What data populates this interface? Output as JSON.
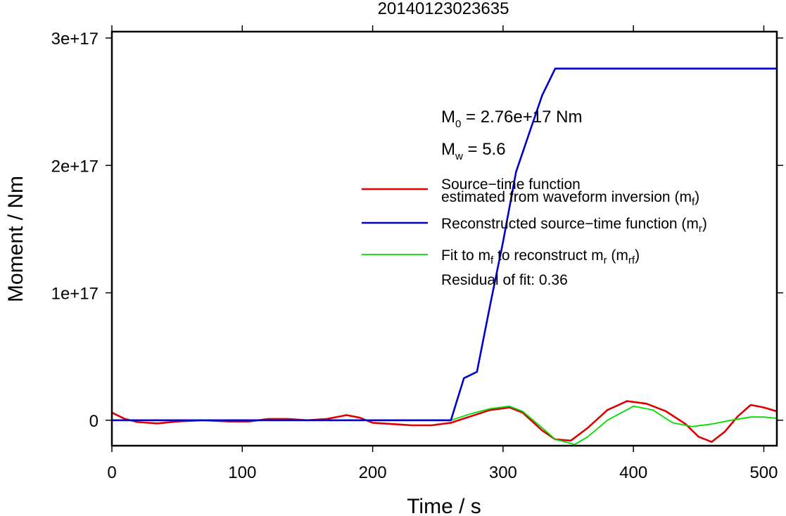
{
  "chart_data": {
    "type": "line",
    "title": "20140123023635",
    "xlabel": "Time / s",
    "ylabel": "Moment / Nm",
    "xlim": [
      0,
      510
    ],
    "ylim": [
      -2e+16,
      3.05e+17
    ],
    "x_ticks": [
      0,
      100,
      200,
      300,
      400,
      500
    ],
    "x_tick_labels": [
      "0",
      "100",
      "200",
      "300",
      "400",
      "500"
    ],
    "y_ticks": [
      0,
      1e+17,
      2e+17,
      3e+17
    ],
    "y_tick_labels": [
      "0",
      "1e+17",
      "2e+17",
      "3e+17"
    ],
    "grid": false,
    "legend_position": "right",
    "annotations": {
      "m0_symbol": "M",
      "m0_sub": "0",
      "m0_value": " = 2.76e+17 Nm",
      "mw_symbol": "M",
      "mw_sub": "w",
      "mw_value": " = 5.6",
      "residual": "Residual of fit: 0.36"
    },
    "legend": [
      {
        "color": "#dd0000",
        "text_line1": "Source−time function",
        "text_line2": "estimated from waveform inversion (m",
        "sub": "f",
        "close": ")"
      },
      {
        "color": "#0000cc",
        "text": "Reconstructed source−time function (m",
        "sub": "r",
        "close": ")"
      },
      {
        "color": "#00dd00",
        "text_a": "Fit to m",
        "sub_a": "f",
        "text_b": " to reconstruct m",
        "sub_b": "r",
        "text_c": " (m",
        "sub_c": "rf",
        "close": ")"
      }
    ],
    "series": [
      {
        "color": "#dd0000",
        "x": [
          0,
          10,
          20,
          35,
          50,
          70,
          90,
          105,
          120,
          135,
          150,
          165,
          180,
          190,
          200,
          215,
          230,
          245,
          260,
          275,
          290,
          305,
          315,
          330,
          340,
          352,
          365,
          380,
          395,
          410,
          425,
          440,
          450,
          460,
          470,
          480,
          490,
          500,
          510
        ],
        "y": [
          6000000000000000.0,
          1000000000000000.0,
          -1500000000000000.0,
          -2500000000000000.0,
          -1000000000000000.0,
          0,
          -1000000000000000.0,
          -1000000000000000.0,
          1000000000000000.0,
          1000000000000000.0,
          0,
          1000000000000000.0,
          4000000000000000.0,
          2000000000000000.0,
          -2000000000000000.0,
          -3000000000000000.0,
          -4000000000000000.0,
          -4000000000000000.0,
          -2000000000000000.0,
          3000000000000000.0,
          8000000000000000.0,
          1e+16,
          6000000000000000.0,
          -8000000000000000.0,
          -1.5e+16,
          -1.6e+16,
          -6000000000000000.0,
          8000000000000000.0,
          1.5e+16,
          1.3e+16,
          7000000000000000.0,
          -3000000000000000.0,
          -1.3e+16,
          -1.7e+16,
          -9000000000000000.0,
          3000000000000000.0,
          1.2e+16,
          1e+16,
          7000000000000000.0
        ]
      },
      {
        "color": "#0000cc",
        "x": [
          0,
          100,
          200,
          260,
          270,
          280,
          290,
          300,
          310,
          320,
          330,
          340,
          400,
          510
        ],
        "y": [
          0,
          0,
          0,
          0,
          3.3e+16,
          3.8e+16,
          9e+16,
          1.4e+17,
          1.95e+17,
          2.25e+17,
          2.55e+17,
          2.76e+17,
          2.76e+17,
          2.76e+17
        ]
      },
      {
        "color": "#00dd00",
        "x": [
          260,
          275,
          290,
          305,
          315,
          330,
          340,
          355,
          365,
          380,
          400,
          415,
          430,
          445,
          460,
          475,
          490,
          500,
          510
        ],
        "y": [
          0,
          5000000000000000.0,
          9000000000000000.0,
          1.1e+16,
          7000000000000000.0,
          -6000000000000000.0,
          -1.5e+16,
          -1.9e+16,
          -1.3e+16,
          0,
          1.1e+16,
          8000000000000000.0,
          -2000000000000000.0,
          -5000000000000000.0,
          -3000000000000000.0,
          0,
          2500000000000000.0,
          2500000000000000.0,
          1500000000000000.0
        ]
      }
    ]
  }
}
